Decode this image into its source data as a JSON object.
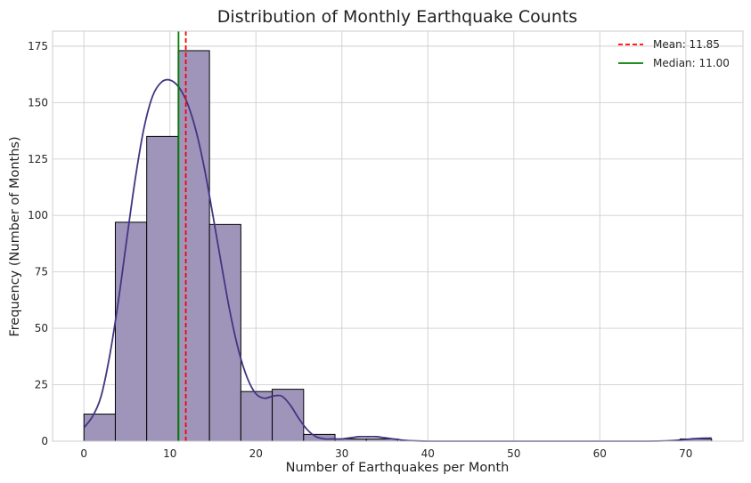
{
  "chart_data": {
    "type": "bar",
    "title": "Distribution of Monthly Earthquake Counts",
    "xlabel": "Number of Earthquakes per Month",
    "ylabel": "Frequency (Number of Months)",
    "xlim": [
      -3.65,
      76.65
    ],
    "ylim": [
      0,
      181.65
    ],
    "xticks": [
      0,
      10,
      20,
      30,
      40,
      50,
      60,
      70
    ],
    "yticks": [
      0,
      25,
      50,
      75,
      100,
      125,
      150,
      175
    ],
    "grid": true,
    "legend_position": "top-right",
    "bin_edges": [
      0,
      3.65,
      7.3,
      10.95,
      14.6,
      18.25,
      21.9,
      25.55,
      29.2,
      32.85,
      36.5,
      40.15,
      43.8,
      47.45,
      51.1,
      54.75,
      58.4,
      62.05,
      65.7,
      69.35,
      73.0
    ],
    "values": [
      12,
      97,
      135,
      173,
      96,
      22,
      23,
      3,
      1,
      1,
      0,
      0,
      0,
      0,
      0,
      0,
      0,
      0,
      0,
      1
    ],
    "kde": {
      "x": [
        0,
        1,
        2,
        3,
        4,
        5,
        6,
        7,
        8,
        9,
        10,
        11,
        12,
        13,
        14,
        15,
        16,
        17,
        18,
        19,
        20,
        21,
        22,
        23,
        24,
        25,
        26,
        27,
        28,
        29,
        30,
        31,
        32,
        33,
        34,
        35,
        36,
        37,
        38,
        40,
        45,
        50,
        55,
        60,
        65,
        68,
        70,
        71,
        72,
        73
      ],
      "y": [
        6,
        11,
        20,
        38,
        62,
        90,
        117,
        139,
        153,
        159,
        160,
        157,
        150,
        138,
        121,
        100,
        78,
        57,
        40,
        28,
        21,
        19,
        20,
        20,
        16,
        10,
        5,
        2,
        1,
        1,
        1,
        1.5,
        2,
        2,
        2,
        1.5,
        1,
        0.5,
        0.2,
        0,
        0,
        0,
        0,
        0,
        0,
        0.2,
        0.8,
        1.1,
        1.3,
        1.4
      ]
    },
    "mean": 11.85,
    "median": 11.0,
    "legend": [
      "Mean: 11.85",
      "Median: 11.00"
    ],
    "colors": {
      "bar_fill": "#9f95bb",
      "bar_edge": "#000000",
      "kde_line": "#433580",
      "mean_line": "#ff0000",
      "median_line": "#008000",
      "grid": "#cfcfcf",
      "axes_edge": "#cccccc"
    }
  }
}
